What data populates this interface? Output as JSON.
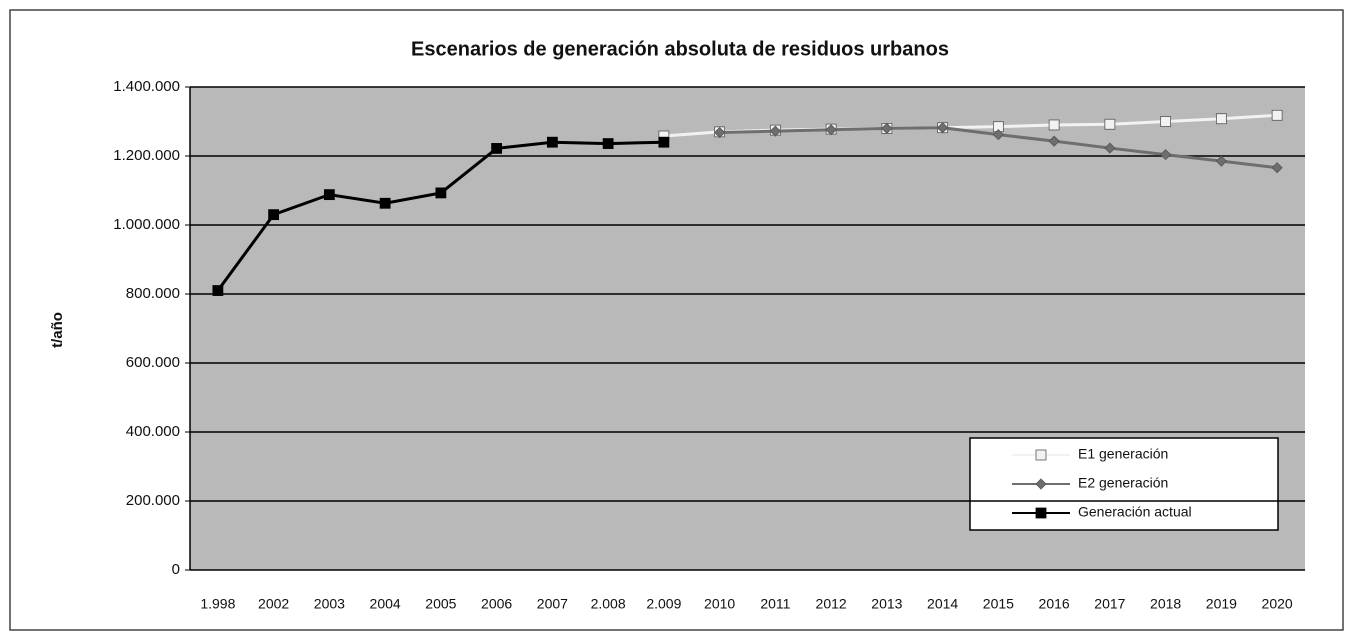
{
  "chart_data": {
    "type": "line",
    "title": "Escenarios de generación absoluta de residuos urbanos",
    "y_label": "t/año",
    "categories": [
      "1.998",
      "2002",
      "2003",
      "2004",
      "2005",
      "2006",
      "2007",
      "2.008",
      "2.009",
      "2010",
      "2011",
      "2012",
      "2013",
      "2014",
      "2015",
      "2016",
      "2017",
      "2018",
      "2019",
      "2020"
    ],
    "series": [
      {
        "name": "E1 generación",
        "color": "#f2f2f2",
        "marker": "square",
        "values": [
          null,
          null,
          null,
          null,
          null,
          null,
          null,
          null,
          1258000,
          1270000,
          1275000,
          1278000,
          1280000,
          1282000,
          1285000,
          1290000,
          1292000,
          1300000,
          1308000,
          1318000
        ]
      },
      {
        "name": "E2 generación",
        "color": "#6e6e6e",
        "marker": "diamond",
        "values": [
          null,
          null,
          null,
          null,
          null,
          null,
          null,
          null,
          null,
          1268000,
          1272000,
          1276000,
          1280000,
          1282000,
          1262000,
          1243000,
          1223000,
          1204000,
          1185000,
          1166000
        ]
      },
      {
        "name": "Generación actual",
        "color": "#000000",
        "marker": "square",
        "values": [
          810000,
          1030000,
          1088000,
          1063000,
          1093000,
          1222000,
          1240000,
          1236000,
          1240000,
          null,
          null,
          null,
          null,
          null,
          null,
          null,
          null,
          null,
          null,
          null
        ]
      }
    ],
    "ylim": [
      0,
      1400000
    ],
    "yticks": [
      0,
      {
        "value": 200000,
        "label": "200.000"
      },
      {
        "value": 400000,
        "label": "400.000"
      },
      {
        "value": 600000,
        "label": "600.000"
      },
      {
        "value": 800000,
        "label": "800.000"
      },
      {
        "value": 1000000,
        "label": "1.000.000"
      },
      {
        "value": 1200000,
        "label": "1.200.000"
      },
      {
        "value": 1400000,
        "label": "1.400.000"
      }
    ],
    "grid": true,
    "legend": "lower right"
  }
}
